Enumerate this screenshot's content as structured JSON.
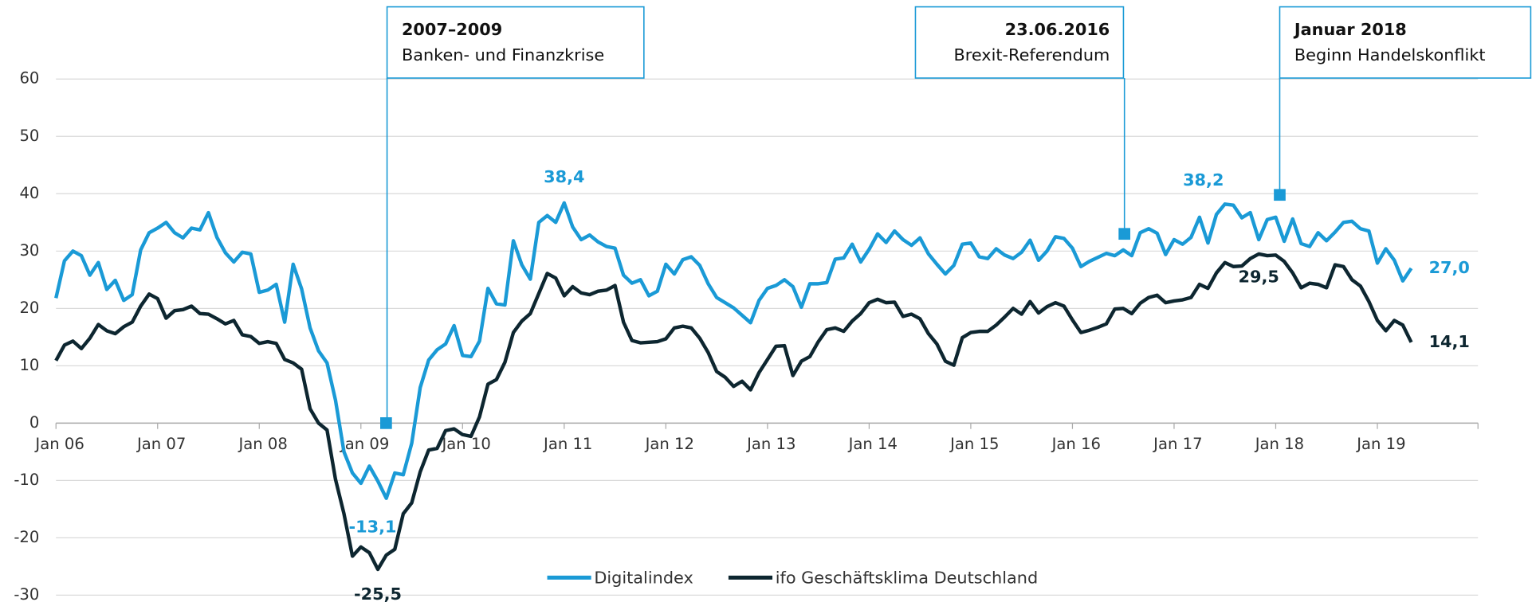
{
  "chart_data": {
    "type": "line",
    "categories": [
      "Jan 06",
      null,
      null,
      null,
      null,
      null,
      null,
      null,
      null,
      null,
      null,
      null,
      "Jan 07",
      null,
      null,
      null,
      null,
      null,
      null,
      null,
      null,
      null,
      null,
      null,
      "Jan 08",
      null,
      null,
      null,
      null,
      null,
      null,
      null,
      null,
      null,
      null,
      null,
      "Jan 09",
      null,
      null,
      null,
      null,
      null,
      null,
      null,
      null,
      null,
      null,
      null,
      "Jan 10",
      null,
      null,
      null,
      null,
      null,
      null,
      null,
      null,
      null,
      null,
      null,
      "Jan 11",
      null,
      null,
      null,
      null,
      null,
      null,
      null,
      null,
      null,
      null,
      null,
      "Jan 12",
      null,
      null,
      null,
      null,
      null,
      null,
      null,
      null,
      null,
      null,
      null,
      "Jan 13",
      null,
      null,
      null,
      null,
      null,
      null,
      null,
      null,
      null,
      null,
      null,
      "Jan 14",
      null,
      null,
      null,
      null,
      null,
      null,
      null,
      null,
      null,
      null,
      null,
      "Jan 15",
      null,
      null,
      null,
      null,
      null,
      null,
      null,
      null,
      null,
      null,
      null,
      "Jan 16",
      null,
      null,
      null,
      null,
      null,
      null,
      null,
      null,
      null,
      null,
      null,
      "Jan 17",
      null,
      null,
      null,
      null,
      null,
      null,
      null,
      null,
      null,
      null,
      null,
      "Jan 18",
      null,
      null,
      null,
      null,
      null,
      null,
      null,
      null,
      null,
      null,
      null,
      "Jan 19",
      null,
      null,
      null,
      null
    ],
    "series": [
      {
        "name": "Digitalindex",
        "color": "#1a9ad6",
        "values": [
          21.8,
          28.3,
          30.0,
          29.2,
          25.8,
          28.0,
          23.3,
          24.9,
          21.4,
          22.4,
          30.2,
          33.2,
          34.0,
          35.0,
          33.2,
          32.3,
          34.0,
          33.7,
          36.7,
          32.4,
          29.7,
          28.1,
          29.8,
          29.5,
          22.8,
          23.2,
          24.2,
          17.6,
          27.7,
          23.4,
          16.6,
          12.6,
          10.5,
          4.0,
          -5.0,
          -8.7,
          -10.5,
          -7.5,
          -10.1,
          -13.1,
          -8.7,
          -9.0,
          -3.5,
          6.2,
          11.0,
          12.8,
          13.8,
          17.0,
          11.8,
          11.6,
          14.3,
          23.5,
          20.8,
          20.6,
          31.8,
          27.6,
          25.1,
          35.0,
          36.2,
          35.0,
          38.4,
          34.2,
          32.0,
          32.8,
          31.6,
          30.8,
          30.5,
          25.8,
          24.4,
          25.0,
          22.2,
          23.0,
          27.7,
          26.0,
          28.5,
          29.0,
          27.5,
          24.3,
          21.9,
          21.0,
          20.1,
          18.8,
          17.5,
          21.4,
          23.5,
          24.0,
          25.0,
          23.8,
          20.2,
          24.3,
          24.3,
          24.5,
          28.6,
          28.8,
          31.2,
          28.1,
          30.3,
          33.0,
          31.5,
          33.5,
          32.0,
          31.0,
          32.3,
          29.5,
          27.7,
          26.0,
          27.5,
          31.2,
          31.4,
          29.0,
          28.7,
          30.4,
          29.3,
          28.7,
          29.8,
          31.9,
          28.4,
          30.0,
          32.5,
          32.2,
          30.5,
          27.3,
          28.2,
          28.9,
          29.6,
          29.2,
          30.2,
          29.2,
          33.2,
          33.9,
          33.1,
          29.4,
          32.0,
          31.2,
          32.4,
          35.9,
          31.4,
          36.4,
          38.2,
          38.0,
          35.8,
          36.7,
          32.0,
          35.5,
          35.9,
          31.7,
          35.6,
          31.3,
          30.8,
          33.2,
          31.8,
          33.3,
          35.0,
          35.2,
          33.9,
          33.5,
          27.9,
          30.4,
          28.4,
          24.8,
          27.0
        ],
        "value_labels": [
          null,
          null,
          null,
          null,
          null,
          null,
          null,
          null,
          null,
          null,
          null,
          null,
          null,
          null,
          null,
          null,
          null,
          null,
          null,
          null,
          null,
          null,
          null,
          null,
          null,
          null,
          null,
          null,
          null,
          null,
          null,
          null,
          null,
          null,
          null,
          null,
          null,
          null,
          null,
          "-13,1",
          null,
          null,
          null,
          null,
          null,
          null,
          null,
          null,
          null,
          null,
          null,
          null,
          null,
          null,
          null,
          null,
          null,
          null,
          null,
          null,
          "38,4",
          null,
          null,
          null,
          null,
          null,
          null,
          null,
          null,
          null,
          null,
          null,
          null,
          null,
          null,
          null,
          null,
          null,
          null,
          null,
          null,
          null,
          null,
          null,
          null,
          null,
          null,
          null,
          null,
          null,
          null,
          null,
          null,
          null,
          null,
          null,
          null,
          null,
          null,
          null,
          null,
          null,
          null,
          null,
          null,
          null,
          null,
          null,
          null,
          null,
          null,
          null,
          null,
          null,
          null,
          null,
          null,
          null,
          null,
          null,
          null,
          null,
          null,
          null,
          null,
          null,
          null,
          null,
          null,
          null,
          null,
          null,
          null,
          null,
          null,
          null,
          null,
          null,
          "38,2",
          null,
          null,
          null,
          null,
          null,
          null,
          null,
          null,
          null,
          null,
          null,
          null,
          null,
          null,
          null,
          null,
          null,
          null,
          null,
          null,
          null,
          "27,0"
        ]
      },
      {
        "name": "ifo Geschäftsklima Deutschland",
        "color": "#0d2630",
        "values": [
          10.9,
          13.6,
          14.3,
          13.0,
          14.8,
          17.2,
          16.1,
          15.6,
          16.8,
          17.6,
          20.4,
          22.5,
          21.7,
          18.3,
          19.6,
          19.8,
          20.4,
          19.1,
          19.0,
          18.2,
          17.3,
          17.9,
          15.4,
          15.1,
          13.9,
          14.2,
          13.9,
          11.1,
          10.5,
          9.4,
          2.5,
          0.0,
          -1.2,
          -9.8,
          -15.8,
          -23.2,
          -21.6,
          -22.6,
          -25.5,
          -23.0,
          -22.0,
          -15.8,
          -13.9,
          -8.5,
          -4.7,
          -4.4,
          -1.3,
          -1.0,
          -2.0,
          -2.3,
          1.1,
          6.8,
          7.6,
          10.6,
          15.8,
          17.8,
          19.1,
          22.6,
          26.1,
          25.3,
          22.2,
          23.8,
          22.7,
          22.4,
          23.0,
          23.2,
          24.0,
          17.6,
          14.4,
          14.0,
          14.1,
          14.2,
          14.7,
          16.6,
          16.9,
          16.6,
          14.8,
          12.3,
          9.0,
          8.0,
          6.4,
          7.3,
          5.8,
          8.8,
          11.1,
          13.4,
          13.5,
          8.3,
          10.8,
          11.6,
          14.2,
          16.3,
          16.6,
          16.0,
          17.8,
          19.1,
          21.0,
          21.6,
          21.0,
          21.1,
          18.6,
          19.0,
          18.2,
          15.6,
          13.8,
          10.8,
          10.1,
          14.9,
          15.8,
          16.0,
          16.0,
          17.1,
          18.5,
          20.0,
          19.0,
          21.2,
          19.2,
          20.3,
          21.0,
          20.4,
          18.0,
          15.8,
          16.2,
          16.7,
          17.3,
          19.9,
          20.0,
          19.1,
          20.9,
          21.9,
          22.3,
          21.0,
          21.3,
          21.5,
          21.9,
          24.2,
          23.5,
          26.2,
          28.0,
          27.3,
          27.4,
          28.7,
          29.5,
          29.2,
          29.3,
          28.2,
          26.2,
          23.6,
          24.4,
          24.2,
          23.6,
          27.6,
          27.3,
          25.0,
          23.9,
          21.2,
          17.9,
          16.1,
          17.9,
          17.1,
          14.1
        ],
        "value_labels": [
          null,
          null,
          null,
          null,
          null,
          null,
          null,
          null,
          null,
          null,
          null,
          null,
          null,
          null,
          null,
          null,
          null,
          null,
          null,
          null,
          null,
          null,
          null,
          null,
          null,
          null,
          null,
          null,
          null,
          null,
          null,
          null,
          null,
          null,
          null,
          null,
          null,
          null,
          "-25,5",
          null,
          null,
          null,
          null,
          null,
          null,
          null,
          null,
          null,
          null,
          null,
          null,
          null,
          null,
          null,
          null,
          null,
          null,
          null,
          null,
          null,
          null,
          null,
          null,
          null,
          null,
          null,
          null,
          null,
          null,
          null,
          null,
          null,
          null,
          null,
          null,
          null,
          null,
          null,
          null,
          null,
          null,
          null,
          null,
          null,
          null,
          null,
          null,
          null,
          null,
          null,
          null,
          null,
          null,
          null,
          null,
          null,
          null,
          null,
          null,
          null,
          null,
          null,
          null,
          null,
          null,
          null,
          null,
          null,
          null,
          null,
          null,
          null,
          null,
          null,
          null,
          null,
          null,
          null,
          null,
          null,
          null,
          null,
          null,
          null,
          null,
          null,
          null,
          null,
          null,
          null,
          null,
          null,
          null,
          null,
          null,
          null,
          null,
          null,
          null,
          null,
          null,
          null,
          "29,5",
          null,
          null,
          null,
          null,
          null,
          null,
          null,
          null,
          null,
          null,
          null,
          null,
          null,
          null,
          null,
          null,
          null,
          "14,1"
        ]
      }
    ],
    "ylim": [
      -30,
      60
    ],
    "yticks": [
      -30,
      -20,
      -10,
      0,
      10,
      20,
      30,
      40,
      50,
      60
    ],
    "grid": true,
    "legend": "bottom",
    "annotations": [
      {
        "title": "2007–2009",
        "text": "Banken- und Finanzkrise",
        "y": 0
      },
      {
        "title": "23.06.2016",
        "text": "Brexit-Referendum",
        "y": 33
      },
      {
        "title": "Januar 2018",
        "text": "Beginn Handelskonflikt",
        "y": 39.8
      }
    ]
  }
}
